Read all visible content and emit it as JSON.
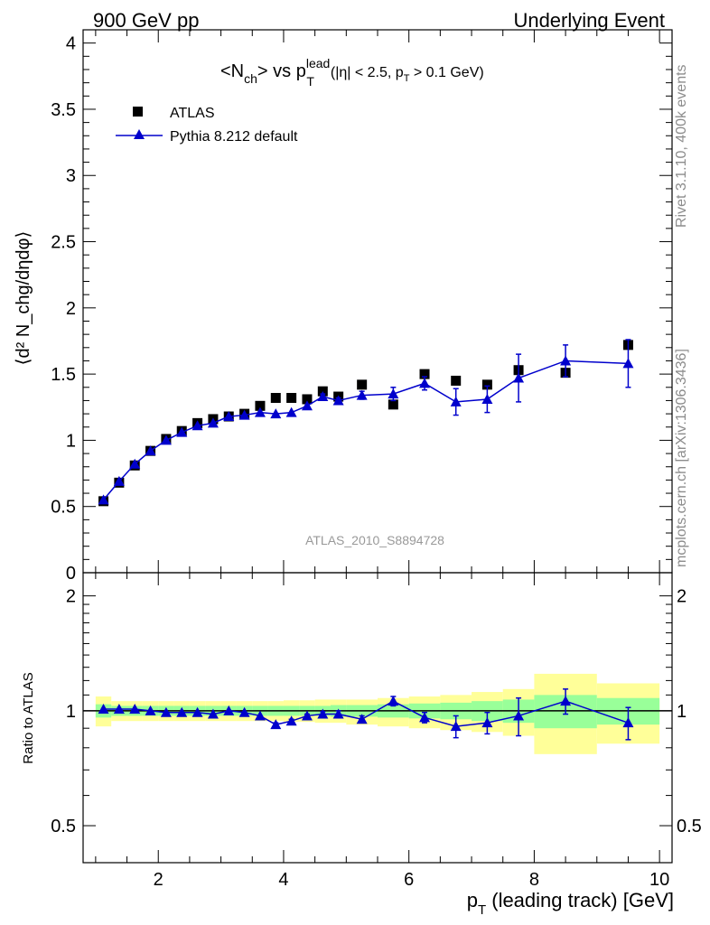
{
  "header": {
    "left": "900 GeV pp",
    "right": "Underlying Event"
  },
  "side_labels": {
    "rivet": "Rivet 3.1.10,  400k events",
    "mcplots": "mcplots.cern.ch [arXiv:1306.3436]"
  },
  "chart_data": [
    {
      "type": "scatter",
      "title_main": "<N",
      "title_main_sub": "ch",
      "title_after": "> vs p",
      "title_sup": "lead",
      "title_sub": "T",
      "title_cut": "(|η| < 2.5, p",
      "title_cut_sub": "T",
      "title_cut_end": " > 0.1 GeV)",
      "ylabel": "⟨d² N_chg/dηdφ⟩",
      "analysis_label": "ATLAS_2010_S8894728",
      "xlim": [
        0.8,
        10.2
      ],
      "ylim": [
        0,
        4.1
      ],
      "yticks": [
        0,
        0.5,
        1,
        1.5,
        2,
        2.5,
        3,
        3.5,
        4
      ],
      "yticklabels": [
        "0",
        "0.5",
        "1",
        "1.5",
        "2",
        "2.5",
        "3",
        "3.5",
        "4"
      ],
      "legend": {
        "placement": "top-left",
        "entries": [
          "ATLAS",
          "Pythia 8.212 default"
        ]
      },
      "series": [
        {
          "name": "ATLAS",
          "marker": "square",
          "color": "#000000",
          "x": [
            1.125,
            1.375,
            1.625,
            1.875,
            2.125,
            2.375,
            2.625,
            2.875,
            3.125,
            3.375,
            3.625,
            3.875,
            4.125,
            4.375,
            4.625,
            4.875,
            5.25,
            5.75,
            6.25,
            6.75,
            7.25,
            7.75,
            8.5,
            9.5
          ],
          "y": [
            0.54,
            0.68,
            0.81,
            0.92,
            1.01,
            1.07,
            1.13,
            1.16,
            1.18,
            1.2,
            1.26,
            1.32,
            1.32,
            1.31,
            1.37,
            1.33,
            1.42,
            1.27,
            1.5,
            1.45,
            1.42,
            1.53,
            1.51,
            1.72
          ]
        },
        {
          "name": "Pythia 8.212 default",
          "marker": "triangle",
          "color": "#0000cc",
          "x": [
            1.125,
            1.375,
            1.625,
            1.875,
            2.125,
            2.375,
            2.625,
            2.875,
            3.125,
            3.375,
            3.625,
            3.875,
            4.125,
            4.375,
            4.625,
            4.875,
            5.25,
            5.75,
            6.25,
            6.75,
            7.25,
            7.75,
            8.5,
            9.5
          ],
          "y": [
            0.55,
            0.69,
            0.82,
            0.92,
            1.0,
            1.06,
            1.11,
            1.13,
            1.18,
            1.19,
            1.21,
            1.2,
            1.21,
            1.26,
            1.33,
            1.3,
            1.34,
            1.35,
            1.43,
            1.29,
            1.31,
            1.47,
            1.6,
            1.58
          ],
          "yerr": [
            0,
            0,
            0,
            0,
            0,
            0,
            0,
            0,
            0,
            0,
            0,
            0,
            0,
            0,
            0.02,
            0.02,
            0.03,
            0.05,
            0.05,
            0.1,
            0.1,
            0.18,
            0.12,
            0.18
          ]
        }
      ]
    },
    {
      "type": "scatter",
      "ylabel": "Ratio to ATLAS",
      "xlabel_main": "p",
      "xlabel_sub": "T",
      "xlabel_rest": " (leading track) [GeV]",
      "xlim": [
        0.8,
        10.2
      ],
      "ylim": [
        0.4,
        2.3
      ],
      "log_y": true,
      "xticks": [
        2,
        4,
        6,
        8,
        10
      ],
      "xticklabels": [
        "2",
        "4",
        "6",
        "8",
        "10"
      ],
      "yticks": [
        0.5,
        1,
        2
      ],
      "yticklabels": [
        "0.5",
        "1",
        "2"
      ],
      "bands": {
        "colors": {
          "inner": "#99ff99",
          "outer": "#ffff99"
        },
        "bins": [
          {
            "lo": 1.0,
            "hi": 1.25,
            "inner": [
              0.96,
              1.04
            ],
            "outer": [
              0.91,
              1.09
            ]
          },
          {
            "lo": 1.25,
            "hi": 1.5,
            "inner": [
              0.97,
              1.03
            ],
            "outer": [
              0.94,
              1.06
            ]
          },
          {
            "lo": 1.5,
            "hi": 1.75,
            "inner": [
              0.97,
              1.03
            ],
            "outer": [
              0.94,
              1.06
            ]
          },
          {
            "lo": 1.75,
            "hi": 2.0,
            "inner": [
              0.97,
              1.03
            ],
            "outer": [
              0.94,
              1.06
            ]
          },
          {
            "lo": 2.0,
            "hi": 2.25,
            "inner": [
              0.97,
              1.03
            ],
            "outer": [
              0.94,
              1.06
            ]
          },
          {
            "lo": 2.25,
            "hi": 2.5,
            "inner": [
              0.97,
              1.03
            ],
            "outer": [
              0.94,
              1.06
            ]
          },
          {
            "lo": 2.5,
            "hi": 2.75,
            "inner": [
              0.97,
              1.03
            ],
            "outer": [
              0.94,
              1.06
            ]
          },
          {
            "lo": 2.75,
            "hi": 3.0,
            "inner": [
              0.97,
              1.03
            ],
            "outer": [
              0.94,
              1.06
            ]
          },
          {
            "lo": 3.0,
            "hi": 3.25,
            "inner": [
              0.97,
              1.03
            ],
            "outer": [
              0.94,
              1.06
            ]
          },
          {
            "lo": 3.25,
            "hi": 3.5,
            "inner": [
              0.97,
              1.03
            ],
            "outer": [
              0.94,
              1.06
            ]
          },
          {
            "lo": 3.5,
            "hi": 3.75,
            "inner": [
              0.97,
              1.03
            ],
            "outer": [
              0.94,
              1.06
            ]
          },
          {
            "lo": 3.75,
            "hi": 4.0,
            "inner": [
              0.97,
              1.03
            ],
            "outer": [
              0.94,
              1.06
            ]
          },
          {
            "lo": 4.0,
            "hi": 4.25,
            "inner": [
              0.97,
              1.03
            ],
            "outer": [
              0.935,
              1.065
            ]
          },
          {
            "lo": 4.25,
            "hi": 4.5,
            "inner": [
              0.97,
              1.03
            ],
            "outer": [
              0.935,
              1.065
            ]
          },
          {
            "lo": 4.5,
            "hi": 4.75,
            "inner": [
              0.97,
              1.03
            ],
            "outer": [
              0.93,
              1.07
            ]
          },
          {
            "lo": 4.75,
            "hi": 5.0,
            "inner": [
              0.965,
              1.035
            ],
            "outer": [
              0.93,
              1.07
            ]
          },
          {
            "lo": 5.0,
            "hi": 5.5,
            "inner": [
              0.965,
              1.035
            ],
            "outer": [
              0.92,
              1.07
            ]
          },
          {
            "lo": 5.5,
            "hi": 6.0,
            "inner": [
              0.96,
              1.04
            ],
            "outer": [
              0.91,
              1.08
            ]
          },
          {
            "lo": 6.0,
            "hi": 6.5,
            "inner": [
              0.955,
              1.045
            ],
            "outer": [
              0.9,
              1.09
            ]
          },
          {
            "lo": 6.5,
            "hi": 7.0,
            "inner": [
              0.95,
              1.05
            ],
            "outer": [
              0.89,
              1.1
            ]
          },
          {
            "lo": 7.0,
            "hi": 7.5,
            "inner": [
              0.94,
              1.06
            ],
            "outer": [
              0.88,
              1.12
            ]
          },
          {
            "lo": 7.5,
            "hi": 8.0,
            "inner": [
              0.93,
              1.07
            ],
            "outer": [
              0.86,
              1.14
            ]
          },
          {
            "lo": 8.0,
            "hi": 9.0,
            "inner": [
              0.9,
              1.1
            ],
            "outer": [
              0.77,
              1.25
            ]
          },
          {
            "lo": 9.0,
            "hi": 10.0,
            "inner": [
              0.92,
              1.08
            ],
            "outer": [
              0.82,
              1.18
            ]
          }
        ]
      },
      "series": [
        {
          "name": "Pythia 8.212 default",
          "marker": "triangle",
          "color": "#0000cc",
          "x": [
            1.125,
            1.375,
            1.625,
            1.875,
            2.125,
            2.375,
            2.625,
            2.875,
            3.125,
            3.375,
            3.625,
            3.875,
            4.125,
            4.375,
            4.625,
            4.875,
            5.25,
            5.75,
            6.25,
            6.75,
            7.25,
            7.75,
            8.5,
            9.5
          ],
          "y": [
            1.01,
            1.01,
            1.01,
            1.0,
            0.99,
            0.99,
            0.99,
            0.98,
            1.0,
            0.99,
            0.97,
            0.92,
            0.94,
            0.97,
            0.98,
            0.98,
            0.95,
            1.06,
            0.96,
            0.91,
            0.93,
            0.97,
            1.06,
            0.93
          ],
          "yerr": [
            0,
            0,
            0,
            0,
            0,
            0,
            0,
            0,
            0,
            0,
            0,
            0.01,
            0.01,
            0.01,
            0.015,
            0.02,
            0.02,
            0.03,
            0.03,
            0.06,
            0.06,
            0.11,
            0.08,
            0.09
          ]
        }
      ]
    }
  ]
}
